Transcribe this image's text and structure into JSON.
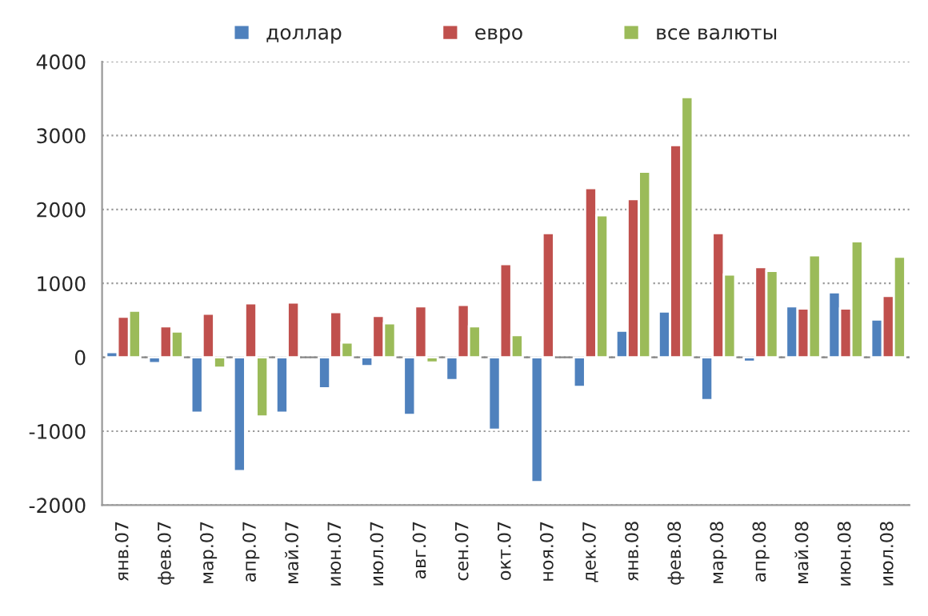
{
  "chart_data": {
    "type": "bar",
    "categories": [
      "янв.07",
      "фев.07",
      "мар.07",
      "апр.07",
      "май.07",
      "июн.07",
      "июл.07",
      "авг.07",
      "сен.07",
      "окт.07",
      "ноя.07",
      "дек.07",
      "янв.08",
      "фев.08",
      "мар.08",
      "апр.08",
      "май.08",
      "июн.08",
      "июл.08"
    ],
    "series": [
      {
        "name": "доллар",
        "color": "#4f81bd",
        "values": [
          70,
          -80,
          -750,
          -1540,
          -750,
          -420,
          -120,
          -780,
          -310,
          -980,
          -1690,
          -400,
          360,
          620,
          -580,
          -60,
          690,
          880,
          510
        ]
      },
      {
        "name": "евро",
        "color": "#c0504d",
        "values": [
          550,
          420,
          590,
          730,
          740,
          610,
          560,
          690,
          710,
          1260,
          1680,
          2290,
          2140,
          2870,
          1680,
          1220,
          660,
          660,
          830
        ]
      },
      {
        "name": "все валюты",
        "color": "#9bbb59",
        "values": [
          630,
          350,
          -140,
          -800,
          null,
          200,
          460,
          -70,
          420,
          300,
          null,
          1920,
          2510,
          3520,
          1120,
          1170,
          1380,
          1570,
          1360
        ]
      }
    ],
    "ylim": [
      -2000,
      4000
    ],
    "yticks": [
      -2000,
      -1000,
      0,
      1000,
      2000,
      3000,
      4000
    ],
    "grid": "y",
    "legend": "top"
  }
}
